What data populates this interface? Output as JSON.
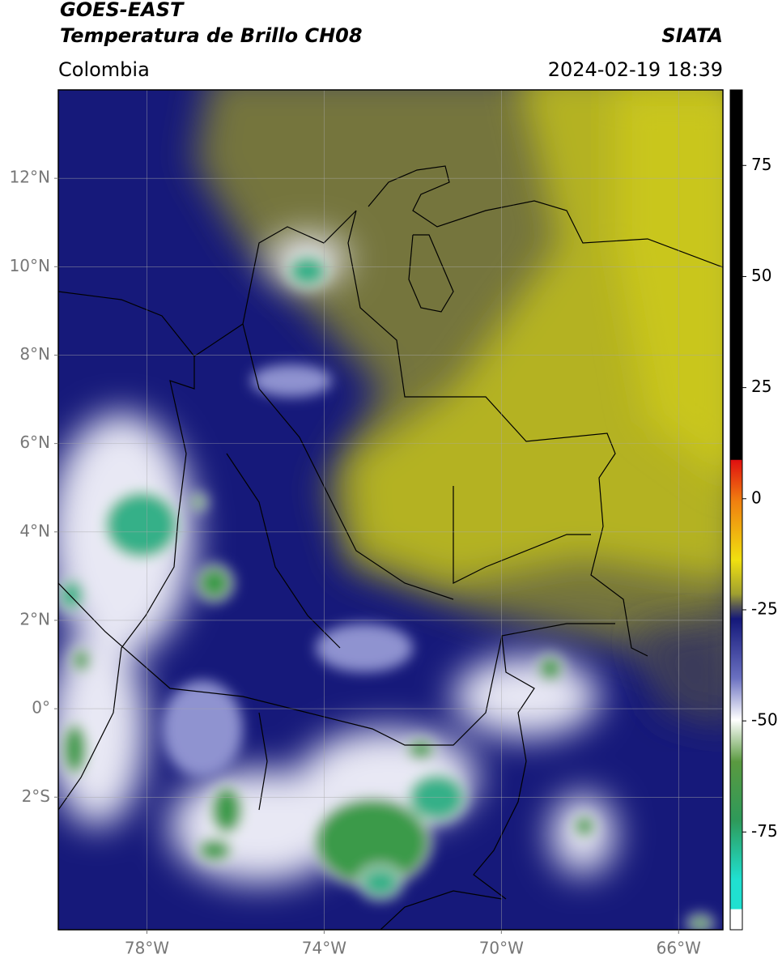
{
  "header": {
    "title_line1": "GOES-EAST",
    "title_line2": "Temperatura de Brillo CH08",
    "region": "Colombia",
    "source": "SIATA",
    "datetime": "2024-02-19 18:39"
  },
  "map": {
    "lon_range": [
      -80,
      -65
    ],
    "lat_range": [
      -5,
      14
    ],
    "grid": true,
    "lon_ticks": [
      {
        "value": -78,
        "label": "78°W"
      },
      {
        "value": -74,
        "label": "74°W"
      },
      {
        "value": -70,
        "label": "70°W"
      },
      {
        "value": -66,
        "label": "66°W"
      }
    ],
    "lat_ticks": [
      {
        "value": 12,
        "label": "12°N"
      },
      {
        "value": 10,
        "label": "10°N"
      },
      {
        "value": 8,
        "label": "8°N"
      },
      {
        "value": 6,
        "label": "6°N"
      },
      {
        "value": 4,
        "label": "4°N"
      },
      {
        "value": 2,
        "label": "2°N"
      },
      {
        "value": 0,
        "label": "0°"
      },
      {
        "value": -2,
        "label": "2°S"
      }
    ]
  },
  "colorbar": {
    "range": [
      -97,
      92
    ],
    "ticks": [
      75,
      50,
      25,
      0,
      -25,
      -50,
      -75
    ]
  }
}
